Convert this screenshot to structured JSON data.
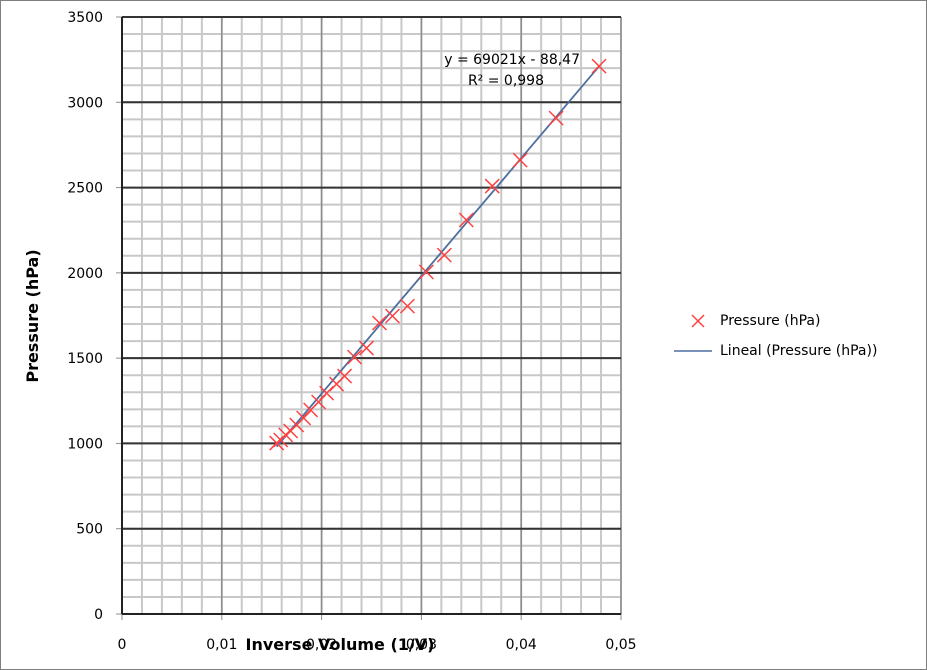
{
  "chart_data": {
    "type": "scatter",
    "title": "",
    "xlabel": "Inverse Volume (1/V)",
    "ylabel": "Pressure (hPa)",
    "xlim": [
      0,
      0.05
    ],
    "ylim": [
      0,
      3500
    ],
    "x_ticks": [
      "0",
      "0,01",
      "0,02",
      "0,03",
      "0,04",
      "0,05"
    ],
    "y_ticks": [
      "0",
      "500",
      "1000",
      "1500",
      "2000",
      "2500",
      "3000",
      "3500"
    ],
    "grid": {
      "major": true,
      "minor": true,
      "x_minor_step": 0.002,
      "y_minor_step": 100
    },
    "legend_position": "right",
    "series": [
      {
        "name": "Pressure (hPa)",
        "marker": "x",
        "color": "#ff4040",
        "x": [
          0.0155,
          0.0159,
          0.0164,
          0.0169,
          0.0175,
          0.0182,
          0.0189,
          0.0197,
          0.0205,
          0.0215,
          0.0223,
          0.0233,
          0.0245,
          0.0258,
          0.0271,
          0.0286,
          0.0305,
          0.0323,
          0.0345,
          0.0371,
          0.0399,
          0.0435,
          0.0478
        ],
        "y": [
          1002,
          1020,
          1050,
          1073,
          1108,
          1149,
          1196,
          1243,
          1295,
          1348,
          1395,
          1506,
          1559,
          1706,
          1747,
          1805,
          2005,
          2104,
          2310,
          2509,
          2661,
          2907,
          3212
        ]
      },
      {
        "name": "Lineal (Pressure (hPa))",
        "type": "trendline",
        "color": "#4f6f9f",
        "slope": 69021,
        "intercept": -88.47,
        "x_range": [
          0.0155,
          0.0478
        ]
      }
    ],
    "annotations": {
      "equation": "y = 69021x - 88,47",
      "r_squared": "R² = 0,998"
    }
  },
  "legend": {
    "items": [
      {
        "label": "Pressure (hPa)"
      },
      {
        "label": "Lineal (Pressure (hPa))"
      }
    ]
  }
}
